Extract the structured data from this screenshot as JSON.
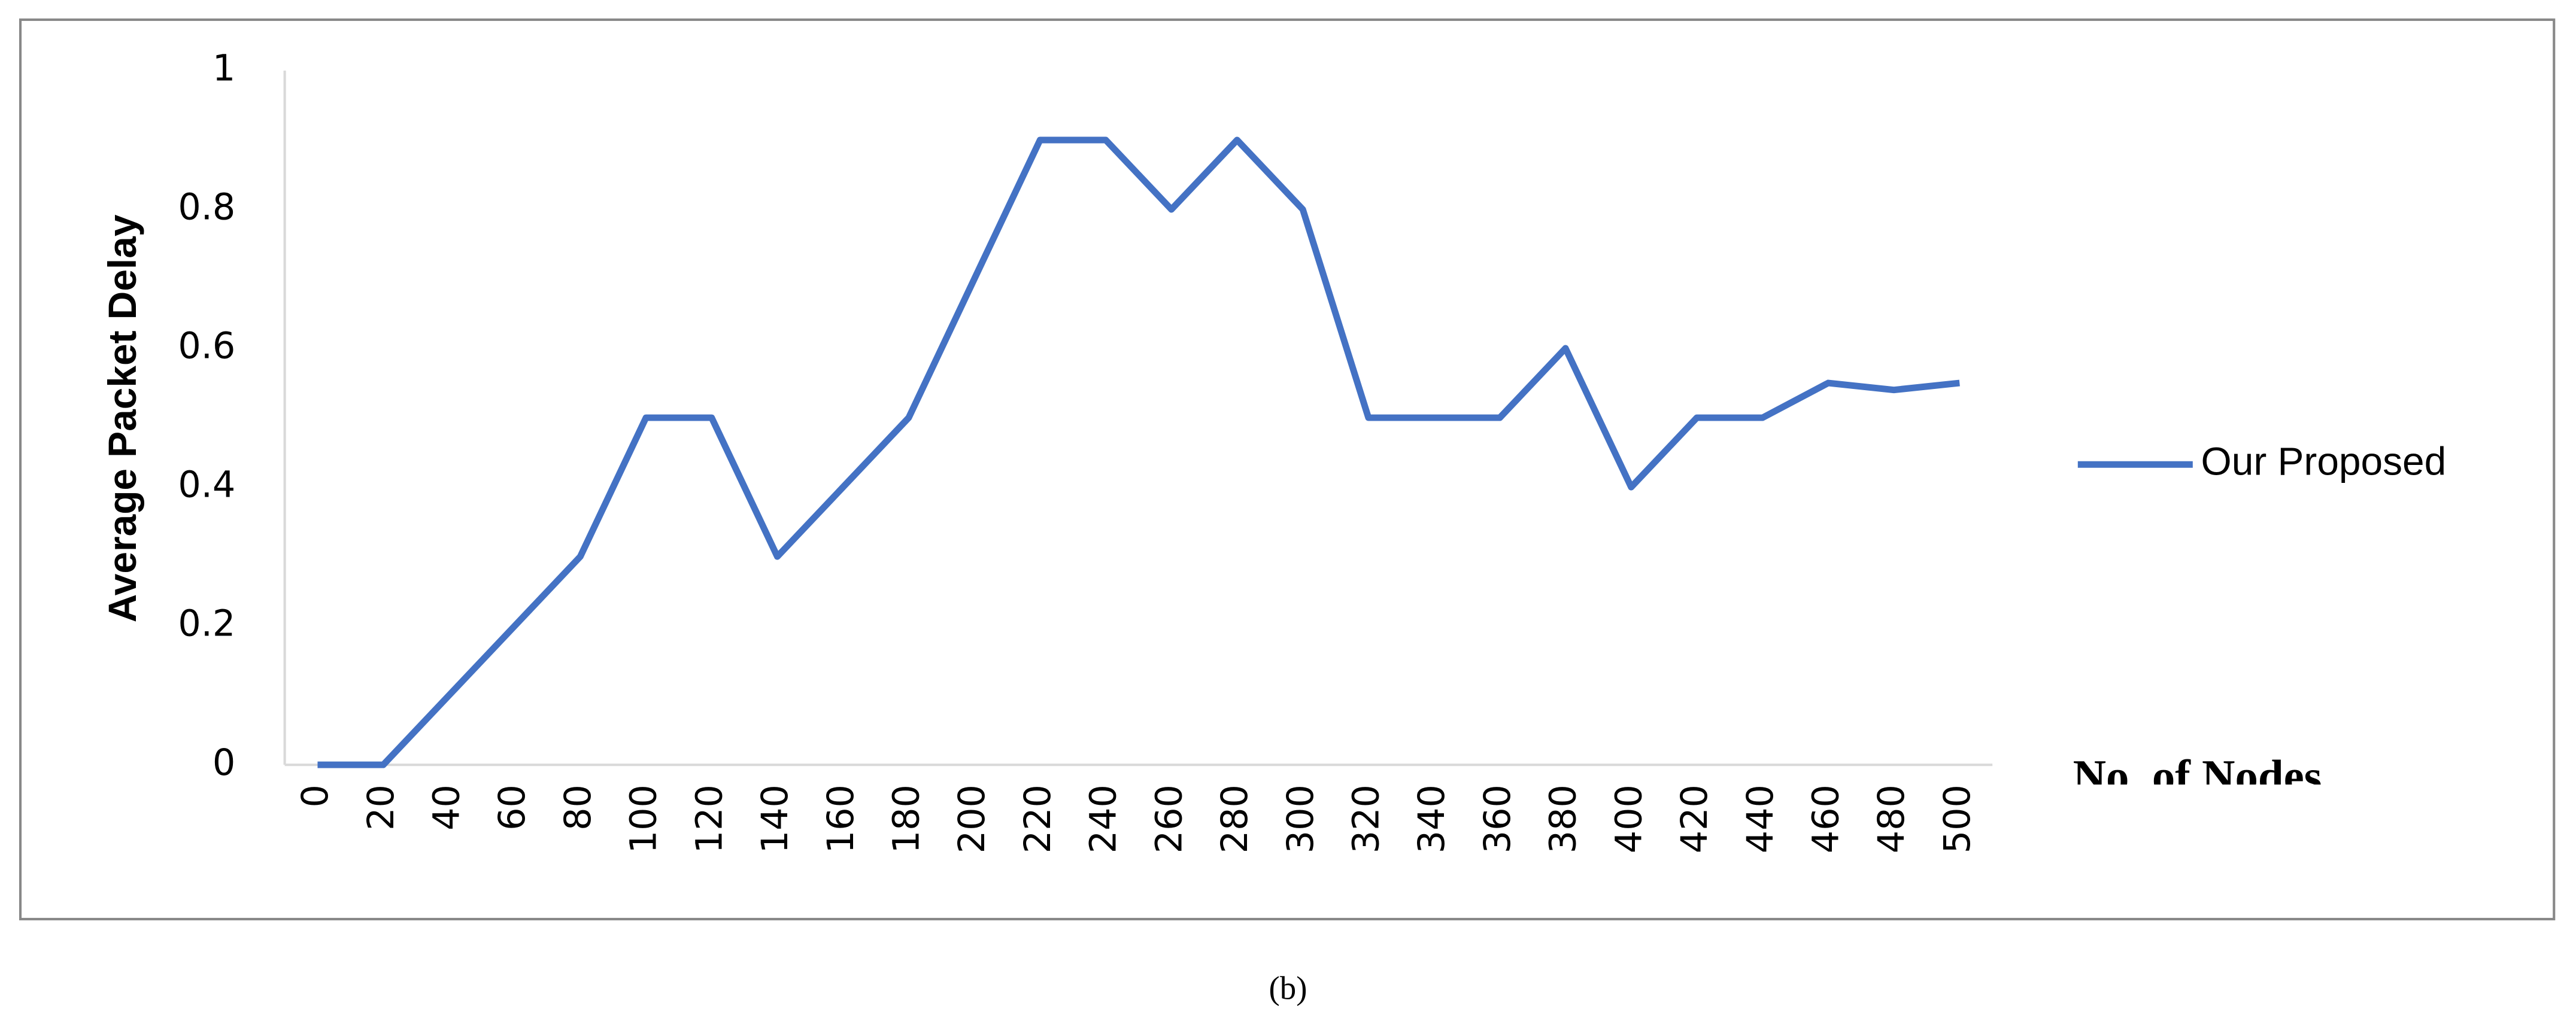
{
  "chart_data": {
    "type": "line",
    "y_label": "Average Packet Delay",
    "x_label": "No. of Nodes",
    "caption": "(b)",
    "categories": [
      "0",
      "20",
      "40",
      "60",
      "80",
      "100",
      "120",
      "140",
      "160",
      "180",
      "200",
      "220",
      "240",
      "260",
      "280",
      "300",
      "320",
      "340",
      "360",
      "380",
      "400",
      "420",
      "440",
      "460",
      "480",
      "500"
    ],
    "series": [
      {
        "name": "Our Proposed",
        "color": "#4472c4",
        "values": [
          0,
          0,
          0.1,
          0.2,
          0.3,
          0.5,
          0.5,
          0.3,
          0.4,
          0.5,
          0.7,
          0.9,
          0.9,
          0.8,
          0.9,
          0.8,
          0.5,
          0.5,
          0.5,
          0.6,
          0.4,
          0.5,
          0.5,
          0.55,
          0.54,
          0.55
        ]
      }
    ],
    "ylim": [
      0,
      1
    ],
    "yticks": [
      0,
      0.2,
      0.4,
      0.6,
      0.8,
      1
    ],
    "grid": false,
    "legend": "right"
  }
}
